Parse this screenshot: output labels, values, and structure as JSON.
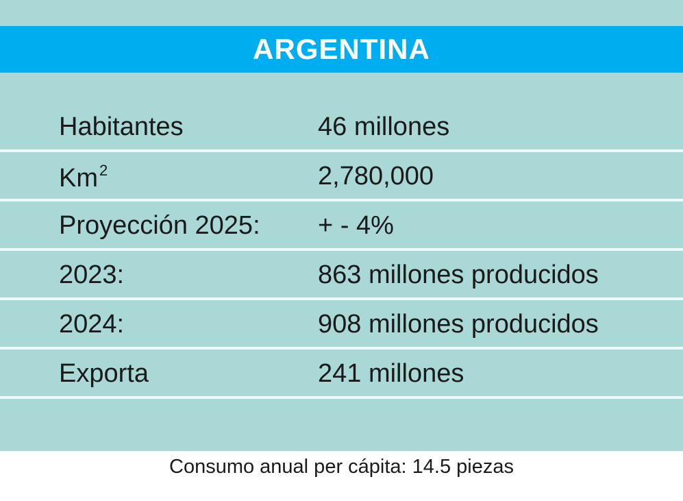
{
  "title": "ARGENTINA",
  "rows": [
    {
      "label": "Habitantes",
      "value": "46 millones"
    },
    {
      "label": "Km",
      "sup": "2",
      "value": "2,780,000"
    },
    {
      "label": "Proyección 2025:",
      "value": "+ - 4%"
    },
    {
      "label": "2023:",
      "value": "863 millones producidos"
    },
    {
      "label": "2024:",
      "value": "908 millones producidos"
    },
    {
      "label": "Exporta",
      "value": "241 millones"
    }
  ],
  "footer": "Consumo anual per cápita: 14.5 piezas",
  "colors": {
    "banner": "#00aeef",
    "card_background": "#a9d8d6",
    "row_separator": "#eef8f8",
    "title_text": "#ffffff"
  }
}
